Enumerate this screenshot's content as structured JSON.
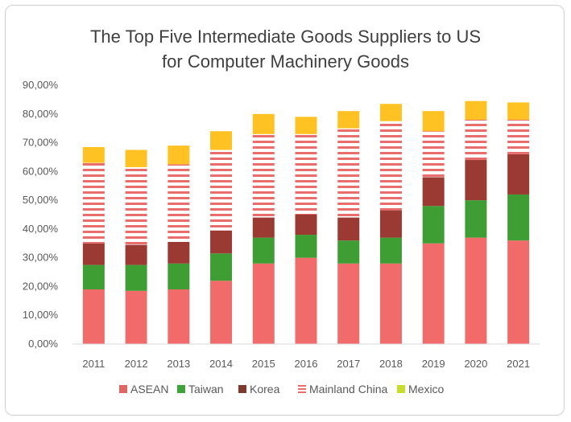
{
  "chart_data": {
    "type": "bar",
    "stacked": true,
    "title_lines": [
      "The Top Five Intermediate Goods Suppliers to US",
      "for Computer Machinery Goods"
    ],
    "categories": [
      "2011",
      "2012",
      "2013",
      "2014",
      "2015",
      "2016",
      "2017",
      "2018",
      "2019",
      "2020",
      "2021"
    ],
    "ylim": [
      0,
      90
    ],
    "yticks": [
      "0,00%",
      "10,00%",
      "20,00%",
      "30,00%",
      "40,00%",
      "50,00%",
      "60,00%",
      "70,00%",
      "80,00%",
      "90,00%"
    ],
    "series": [
      {
        "name": "ASEAN",
        "color": "#f26b6b",
        "values": [
          19,
          18.5,
          19,
          22,
          28,
          30,
          28,
          28,
          35,
          37,
          36
        ]
      },
      {
        "name": "Taiwan",
        "color": "#3e9e33",
        "values": [
          8.5,
          9,
          9,
          9.5,
          9,
          8,
          8,
          9,
          13,
          13,
          16
        ]
      },
      {
        "name": "Korea",
        "color": "#9b3a32",
        "values": [
          7.5,
          7,
          7.5,
          8,
          7,
          7,
          8,
          9.5,
          10,
          14,
          14
        ]
      },
      {
        "name": "Mainland China",
        "color": "#ea6d6d",
        "values": [
          28,
          27,
          27,
          28,
          29,
          28,
          31,
          31,
          16,
          14,
          12
        ]
      },
      {
        "name": "Mexico",
        "color": "#ffc222",
        "values": [
          5.5,
          6,
          6.5,
          6.5,
          7,
          6,
          6,
          6,
          7,
          6.5,
          6
        ]
      }
    ],
    "legend": [
      "ASEAN",
      "Taiwan",
      "Korea",
      "Mainland China",
      "Mexico"
    ],
    "legend_colors": [
      "#e06666",
      "#3ea23a",
      "#7a3b2e",
      "#ea6d6d",
      "#c8dc2a"
    ]
  }
}
